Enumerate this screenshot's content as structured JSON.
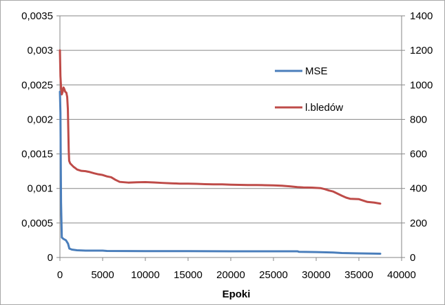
{
  "chart_data": {
    "type": "line",
    "title": "",
    "xlabel": "Epoki",
    "ylabel": "",
    "ylabel_right": "",
    "xlim": [
      0,
      40000
    ],
    "ylim_left": [
      0,
      0.0035
    ],
    "ylim_right": [
      0,
      1400
    ],
    "x_ticks": [
      "0",
      "5000",
      "10000",
      "15000",
      "20000",
      "25000",
      "30000",
      "35000",
      "40000"
    ],
    "y_left_ticks": [
      "0",
      "0,0005",
      "0,001",
      "0,0015",
      "0,002",
      "0,0025",
      "0,003",
      "0,0035"
    ],
    "y_right_ticks": [
      "0",
      "200",
      "400",
      "600",
      "800",
      "1000",
      "1200",
      "1400"
    ],
    "grid": "horizontal",
    "legend_position": "right-inside",
    "series": [
      {
        "name": "MSE",
        "axis": "left",
        "color": "#4a7ebb",
        "points": [
          [
            0,
            0.0024
          ],
          [
            60,
            0.0021
          ],
          [
            130,
            0.0008
          ],
          [
            220,
            0.00029
          ],
          [
            400,
            0.00027
          ],
          [
            700,
            0.00025
          ],
          [
            950,
            0.0002
          ],
          [
            1100,
            0.00013
          ],
          [
            1400,
            0.000115
          ],
          [
            2000,
            0.000105
          ],
          [
            3000,
            0.0001
          ],
          [
            5000,
            0.0001
          ],
          [
            5500,
            9.5e-05
          ],
          [
            10000,
            9.2e-05
          ],
          [
            15000,
            9.2e-05
          ],
          [
            20000,
            9e-05
          ],
          [
            25000,
            9e-05
          ],
          [
            27800,
            9e-05
          ],
          [
            28000,
            8.2e-05
          ],
          [
            30000,
            7.8e-05
          ],
          [
            32000,
            7.2e-05
          ],
          [
            33000,
            6.5e-05
          ],
          [
            35000,
            6e-05
          ],
          [
            37500,
            5.5e-05
          ]
        ]
      },
      {
        "name": "l.bledów",
        "axis": "right",
        "color": "#be4b48",
        "points": [
          [
            0,
            1200
          ],
          [
            60,
            1050
          ],
          [
            130,
            990
          ],
          [
            220,
            945
          ],
          [
            320,
            960
          ],
          [
            420,
            985
          ],
          [
            520,
            975
          ],
          [
            620,
            960
          ],
          [
            750,
            955
          ],
          [
            850,
            930
          ],
          [
            930,
            860
          ],
          [
            980,
            740
          ],
          [
            1030,
            620
          ],
          [
            1080,
            560
          ],
          [
            1200,
            545
          ],
          [
            1400,
            535
          ],
          [
            1600,
            525
          ],
          [
            1800,
            518
          ],
          [
            2000,
            510
          ],
          [
            2500,
            502
          ],
          [
            3000,
            500
          ],
          [
            3500,
            495
          ],
          [
            4000,
            488
          ],
          [
            4500,
            482
          ],
          [
            5000,
            478
          ],
          [
            5500,
            470
          ],
          [
            6000,
            465
          ],
          [
            6500,
            450
          ],
          [
            7000,
            438
          ],
          [
            7500,
            436
          ],
          [
            8000,
            434
          ],
          [
            9000,
            436
          ],
          [
            10000,
            437
          ],
          [
            11000,
            435
          ],
          [
            12000,
            432
          ],
          [
            13000,
            430
          ],
          [
            14000,
            428
          ],
          [
            15000,
            428
          ],
          [
            16000,
            427
          ],
          [
            17000,
            425
          ],
          [
            18000,
            424
          ],
          [
            19000,
            424
          ],
          [
            20000,
            422
          ],
          [
            21000,
            421
          ],
          [
            22000,
            420
          ],
          [
            23000,
            420
          ],
          [
            24000,
            419
          ],
          [
            25000,
            418
          ],
          [
            26000,
            416
          ],
          [
            27000,
            412
          ],
          [
            27800,
            408
          ],
          [
            28500,
            406
          ],
          [
            29500,
            405
          ],
          [
            30500,
            402
          ],
          [
            31000,
            396
          ],
          [
            31500,
            388
          ],
          [
            32000,
            382
          ],
          [
            32500,
            370
          ],
          [
            33000,
            358
          ],
          [
            33500,
            347
          ],
          [
            34000,
            340
          ],
          [
            35000,
            338
          ],
          [
            35500,
            330
          ],
          [
            36000,
            322
          ],
          [
            36800,
            318
          ],
          [
            37500,
            312
          ]
        ]
      }
    ]
  }
}
